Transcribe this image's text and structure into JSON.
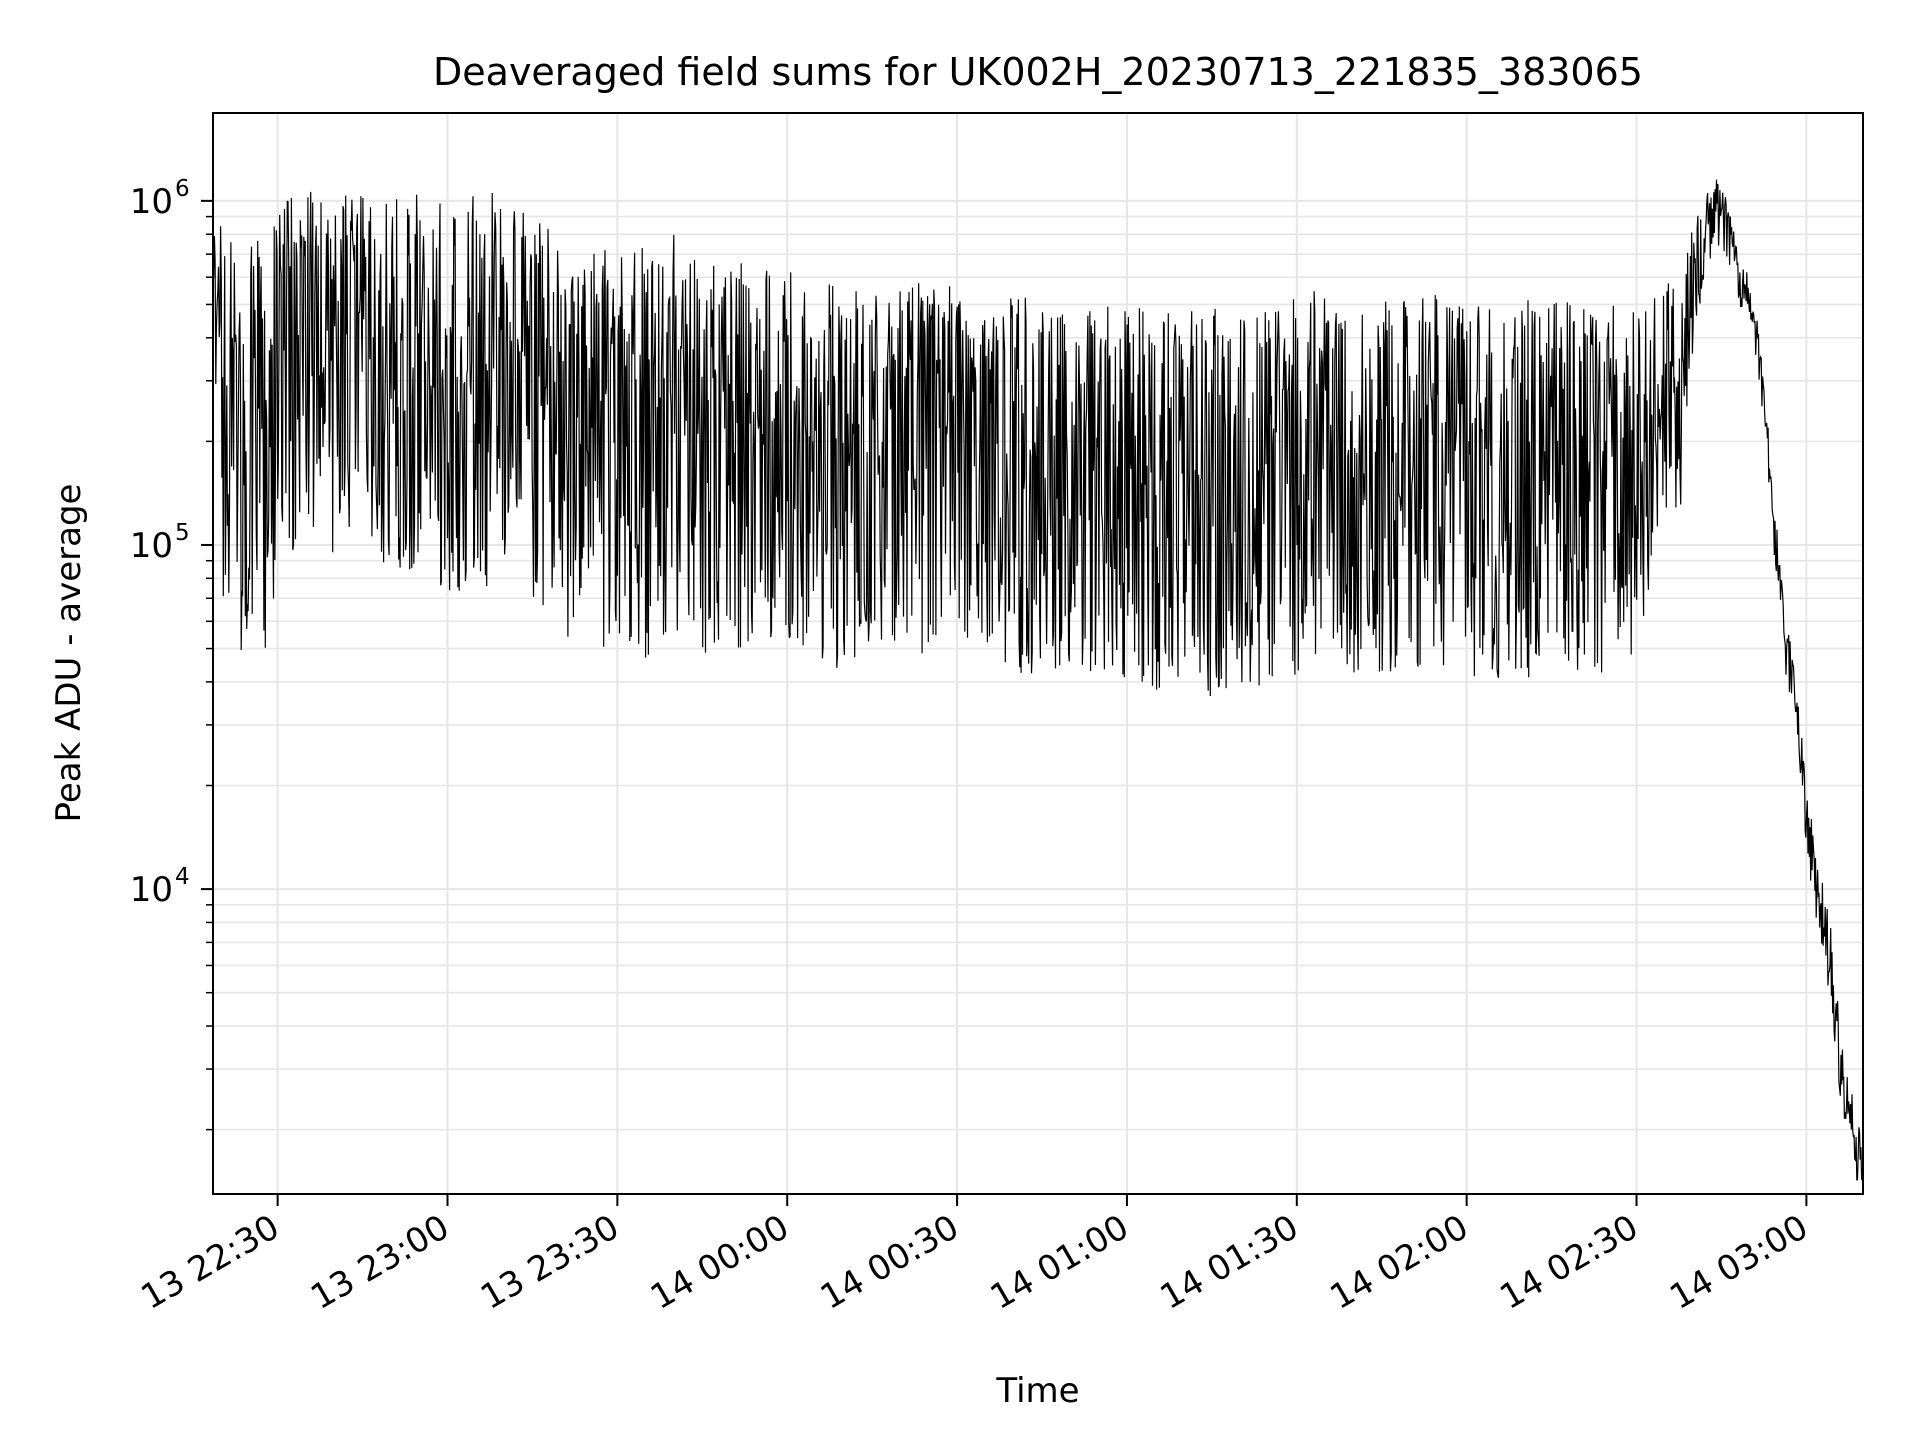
{
  "chart_data": {
    "type": "line",
    "title": "Deaveraged field sums for UK002H_20230713_221835_383065",
    "xlabel": "Time",
    "ylabel": "Peak ADU - average",
    "yscale": "log",
    "ylim": [
      1300,
      1800000
    ],
    "xlim": [
      "2023-07-13 22:18:35",
      "2023-07-14 03:10:00"
    ],
    "grid": true,
    "line_color": "#000000",
    "grid_color": "#e6e6e6",
    "x_tick_labels": [
      "13 22:30",
      "13 23:00",
      "13 23:30",
      "14 00:00",
      "14 00:30",
      "14 01:00",
      "14 01:30",
      "14 02:00",
      "14 02:30",
      "14 03:00"
    ],
    "x_ticks": [
      "2023-07-13 22:30",
      "2023-07-13 23:00",
      "2023-07-13 23:30",
      "2023-07-14 00:00",
      "2023-07-14 00:30",
      "2023-07-14 01:00",
      "2023-07-14 01:30",
      "2023-07-14 02:00",
      "2023-07-14 02:30",
      "2023-07-14 03:00"
    ],
    "y_ticks": [
      {
        "value": 10000,
        "base": "10",
        "exp": "4"
      },
      {
        "value": 100000,
        "base": "10",
        "exp": "5"
      },
      {
        "value": 1000000,
        "base": "10",
        "exp": "6"
      }
    ],
    "series": [
      {
        "x": [
          "2023-07-13 22:18:35",
          "2023-07-13 22:20:00",
          "2023-07-13 22:22:00",
          "2023-07-13 22:24:00",
          "2023-07-13 22:26:00",
          "2023-07-13 22:28:00",
          "2023-07-13 22:30:00",
          "2023-07-13 22:35:00",
          "2023-07-13 22:40:00",
          "2023-07-13 22:45:00",
          "2023-07-13 22:50:00",
          "2023-07-13 22:55:00",
          "2023-07-13 23:00:00",
          "2023-07-13 23:05:00",
          "2023-07-13 23:10:00",
          "2023-07-13 23:15:00",
          "2023-07-13 23:20:00",
          "2023-07-13 23:25:00",
          "2023-07-13 23:30:00",
          "2023-07-13 23:35:00",
          "2023-07-13 23:40:00",
          "2023-07-13 23:45:00",
          "2023-07-13 23:50:00",
          "2023-07-13 23:55:00",
          "2023-07-14 00:00:00",
          "2023-07-14 00:05:00",
          "2023-07-14 00:10:00",
          "2023-07-14 00:15:00",
          "2023-07-14 00:20:00",
          "2023-07-14 00:25:00",
          "2023-07-14 00:30:00",
          "2023-07-14 00:35:00",
          "2023-07-14 00:40:00",
          "2023-07-14 00:45:00",
          "2023-07-14 00:50:00",
          "2023-07-14 00:55:00",
          "2023-07-14 01:00:00",
          "2023-07-14 01:05:00",
          "2023-07-14 01:10:00",
          "2023-07-14 01:15:00",
          "2023-07-14 01:20:00",
          "2023-07-14 01:25:00",
          "2023-07-14 01:30:00",
          "2023-07-14 01:35:00",
          "2023-07-14 01:40:00",
          "2023-07-14 01:45:00",
          "2023-07-14 01:50:00",
          "2023-07-14 01:55:00",
          "2023-07-14 02:00:00",
          "2023-07-14 02:05:00",
          "2023-07-14 02:10:00",
          "2023-07-14 02:15:00",
          "2023-07-14 02:20:00",
          "2023-07-14 02:25:00",
          "2023-07-14 02:30:00",
          "2023-07-14 02:35:00",
          "2023-07-14 02:38:00",
          "2023-07-14 02:40:00",
          "2023-07-14 02:42:00",
          "2023-07-14 02:44:00",
          "2023-07-14 02:46:00",
          "2023-07-14 02:48:00",
          "2023-07-14 02:50:00",
          "2023-07-14 02:52:00",
          "2023-07-14 02:54:00",
          "2023-07-14 02:56:00",
          "2023-07-14 02:58:00",
          "2023-07-14 03:00:00",
          "2023-07-14 03:02:00",
          "2023-07-14 03:04:00",
          "2023-07-14 03:06:00",
          "2023-07-14 03:08:00",
          "2023-07-14 03:10:00"
        ],
        "y": [
          700000,
          300000,
          250000,
          150000,
          300000,
          200000,
          350000,
          450000,
          400000,
          450000,
          350000,
          350000,
          300000,
          300000,
          350000,
          300000,
          220000,
          220000,
          200000,
          200000,
          230000,
          180000,
          200000,
          210000,
          210000,
          200000,
          180000,
          200000,
          220000,
          200000,
          210000,
          200000,
          180000,
          180000,
          190000,
          180000,
          170000,
          160000,
          160000,
          150000,
          160000,
          160000,
          180000,
          200000,
          180000,
          180000,
          180000,
          180000,
          170000,
          170000,
          170000,
          180000,
          180000,
          180000,
          200000,
          250000,
          300000,
          600000,
          800000,
          1000000,
          850000,
          600000,
          550000,
          300000,
          120000,
          55000,
          35000,
          15000,
          10000,
          6000,
          3000,
          2000,
          1500
        ],
        "spread_low": [
          0.35,
          0.2,
          0.2,
          0.2,
          0.2,
          0.2,
          0.2,
          0.2,
          0.2,
          0.2,
          0.2,
          0.2,
          0.2,
          0.2,
          0.2,
          0.2,
          0.2,
          0.2,
          0.2,
          0.2,
          0.2,
          0.2,
          0.2,
          0.2,
          0.2,
          0.2,
          0.2,
          0.2,
          0.2,
          0.2,
          0.2,
          0.2,
          0.2,
          0.2,
          0.2,
          0.2,
          0.2,
          0.2,
          0.2,
          0.2,
          0.2,
          0.2,
          0.2,
          0.2,
          0.2,
          0.2,
          0.2,
          0.2,
          0.2,
          0.2,
          0.2,
          0.2,
          0.2,
          0.2,
          0.2,
          0.3,
          0.3,
          0.6,
          0.7,
          0.75,
          0.7,
          0.8,
          0.85,
          0.8,
          0.75,
          0.8,
          0.75,
          0.75,
          0.75,
          0.75,
          0.8,
          0.75,
          0.75
        ],
        "spread_high": [
          1.2,
          3.0,
          3.2,
          3.5,
          3.3,
          3.2,
          2.8,
          2.5,
          2.5,
          2.6,
          3.0,
          3.2,
          3.2,
          3.5,
          3.0,
          3.0,
          3.5,
          3.5,
          3.5,
          4.0,
          3.5,
          3.5,
          3.5,
          3.0,
          3.0,
          3.0,
          3.2,
          3.0,
          2.8,
          2.8,
          2.8,
          2.8,
          3.0,
          2.8,
          2.8,
          2.8,
          3.0,
          3.0,
          3.2,
          3.3,
          3.0,
          3.0,
          3.0,
          2.8,
          3.0,
          3.0,
          3.0,
          3.0,
          3.0,
          3.0,
          3.0,
          3.0,
          2.8,
          2.8,
          2.5,
          2.3,
          2.0,
          1.4,
          1.3,
          1.2,
          1.2,
          1.15,
          1.1,
          1.2,
          1.2,
          1.2,
          1.3,
          1.3,
          1.3,
          1.4,
          1.3,
          1.3,
          1.3
        ]
      }
    ]
  }
}
